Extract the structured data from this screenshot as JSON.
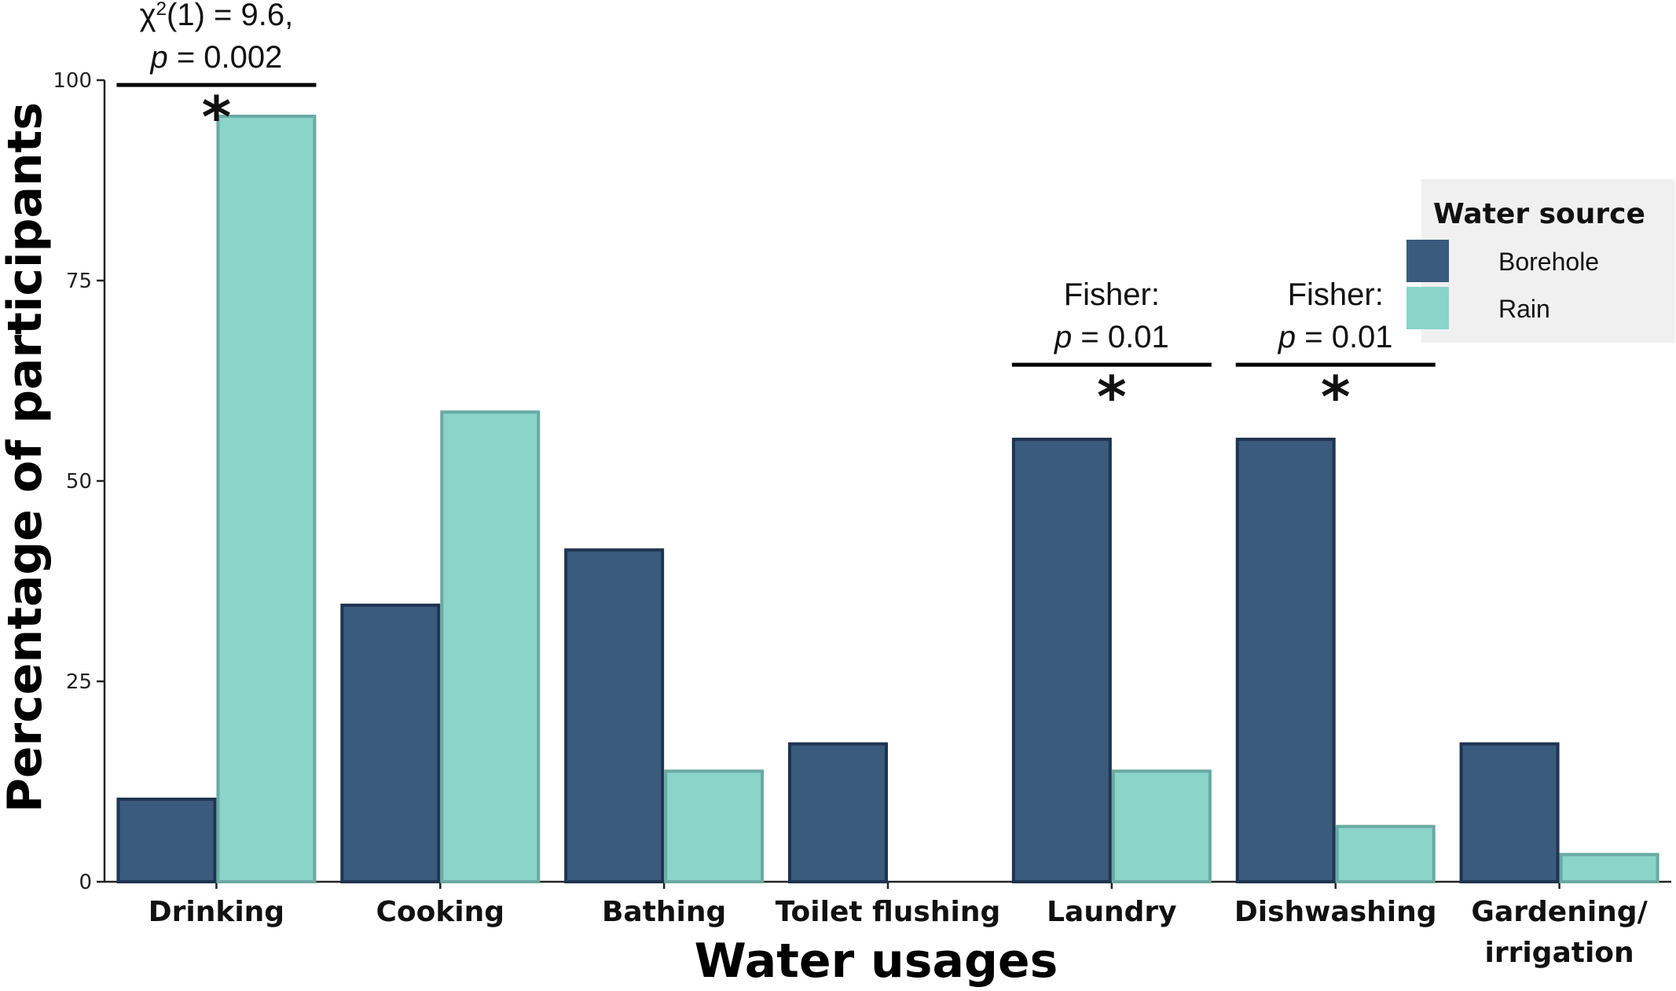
{
  "chart_data": {
    "type": "bar",
    "xlabel": "Water usages",
    "ylabel": "Percentage of participants",
    "ylim": [
      0,
      100
    ],
    "yticks": [
      "0",
      "25",
      "50",
      "75",
      "100"
    ],
    "categories": [
      "Drinking",
      "Cooking",
      "Bathing",
      "Toilet flushing",
      "Laundry",
      "Dishwashing",
      "Gardening/ irrigation"
    ],
    "category_lines": [
      [
        "Drinking"
      ],
      [
        "Cooking"
      ],
      [
        "Bathing"
      ],
      [
        "Toilet flushing"
      ],
      [
        "Laundry"
      ],
      [
        "Dishwashing"
      ],
      [
        "Gardening/",
        "irrigation"
      ]
    ],
    "series": [
      {
        "name": "Borehole",
        "color": "#3a5a7e",
        "stroke": "#1f3450",
        "values": [
          10.3,
          34.5,
          41.4,
          17.2,
          55.2,
          55.2,
          17.2
        ]
      },
      {
        "name": "Rain",
        "color": "#8ad4ca",
        "stroke": "#6aaaa2",
        "values": [
          95.5,
          58.6,
          13.8,
          0,
          13.8,
          6.9,
          3.4
        ]
      }
    ],
    "legend": {
      "title": "Water source",
      "position": "right"
    },
    "grid": false,
    "annotations": [
      {
        "category_index": 0,
        "lines": [
          {
            "pre": "χ",
            "sup": "2",
            "post": "(1) = 9.6,"
          },
          {
            "italic": "p",
            "post": " = 0.002"
          }
        ],
        "star": "*",
        "bar_level": 99.4
      },
      {
        "category_index": 4,
        "lines": [
          {
            "pre": "Fisher:"
          },
          {
            "italic": "p",
            "post": " = 0.01"
          }
        ],
        "star": "*",
        "bar_level": 64.5
      },
      {
        "category_index": 5,
        "lines": [
          {
            "pre": "Fisher:"
          },
          {
            "italic": "p",
            "post": " = 0.01"
          }
        ],
        "star": "*",
        "bar_level": 64.5
      }
    ]
  }
}
